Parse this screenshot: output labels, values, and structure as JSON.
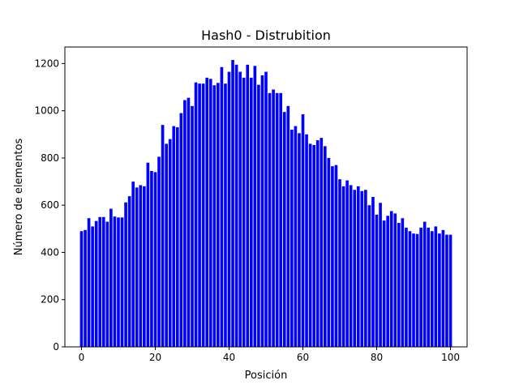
{
  "chart_data": {
    "type": "bar",
    "title": "Hash0 - Distrubition",
    "xlabel": "Posición",
    "ylabel": "Número de elementos",
    "xlim": [
      -4.5,
      104.5
    ],
    "ylim": [
      0,
      1270
    ],
    "xticks": [
      0,
      20,
      40,
      60,
      80,
      100
    ],
    "yticks": [
      0,
      200,
      400,
      600,
      800,
      1000,
      1200
    ],
    "grid": false,
    "legend": "none",
    "bar_color": "#0000ff",
    "x": [
      0,
      1,
      2,
      3,
      4,
      5,
      6,
      7,
      8,
      9,
      10,
      11,
      12,
      13,
      14,
      15,
      16,
      17,
      18,
      19,
      20,
      21,
      22,
      23,
      24,
      25,
      26,
      27,
      28,
      29,
      30,
      31,
      32,
      33,
      34,
      35,
      36,
      37,
      38,
      39,
      40,
      41,
      42,
      43,
      44,
      45,
      46,
      47,
      48,
      49,
      50,
      51,
      52,
      53,
      54,
      55,
      56,
      57,
      58,
      59,
      60,
      61,
      62,
      63,
      64,
      65,
      66,
      67,
      68,
      69,
      70,
      71,
      72,
      73,
      74,
      75,
      76,
      77,
      78,
      79,
      80,
      81,
      82,
      83,
      84,
      85,
      86,
      87,
      88,
      89,
      90,
      91,
      92,
      93,
      94,
      95,
      96,
      97,
      98,
      99,
      100
    ],
    "values": [
      490,
      495,
      545,
      510,
      533,
      550,
      550,
      530,
      585,
      552,
      548,
      548,
      612,
      638,
      700,
      675,
      685,
      680,
      780,
      745,
      740,
      805,
      940,
      860,
      880,
      935,
      930,
      990,
      1045,
      1055,
      1020,
      1120,
      1115,
      1115,
      1140,
      1135,
      1108,
      1118,
      1185,
      1115,
      1165,
      1215,
      1195,
      1165,
      1140,
      1195,
      1140,
      1190,
      1110,
      1150,
      1165,
      1075,
      1090,
      1075,
      1075,
      995,
      1020,
      920,
      935,
      905,
      985,
      900,
      860,
      855,
      875,
      885,
      850,
      800,
      765,
      770,
      710,
      680,
      705,
      685,
      665,
      680,
      660,
      665,
      600,
      635,
      560,
      610,
      535,
      555,
      575,
      565,
      525,
      545,
      505,
      490,
      480,
      478,
      505,
      530,
      505,
      490,
      510,
      480,
      495,
      475,
      475
    ]
  }
}
